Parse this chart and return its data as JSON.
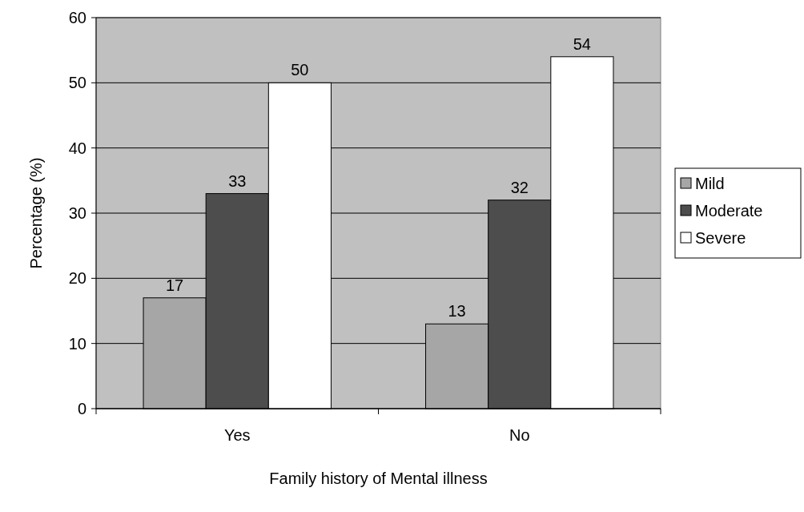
{
  "chart_data": {
    "type": "bar",
    "xlabel": "Family history of Mental illness",
    "ylabel": "Percentage (%)",
    "categories": [
      "Yes",
      "No"
    ],
    "series": [
      {
        "name": "Mild",
        "color": "#a6a6a6",
        "values": [
          17,
          13
        ]
      },
      {
        "name": "Moderate",
        "color": "#4d4d4d",
        "values": [
          33,
          32
        ]
      },
      {
        "name": "Severe",
        "color": "#ffffff",
        "values": [
          50,
          54
        ]
      }
    ],
    "ylim": [
      0,
      60
    ],
    "yticks": [
      0,
      10,
      20,
      30,
      40,
      50,
      60
    ],
    "grid": "y",
    "legend": "right",
    "data_labels": true
  }
}
